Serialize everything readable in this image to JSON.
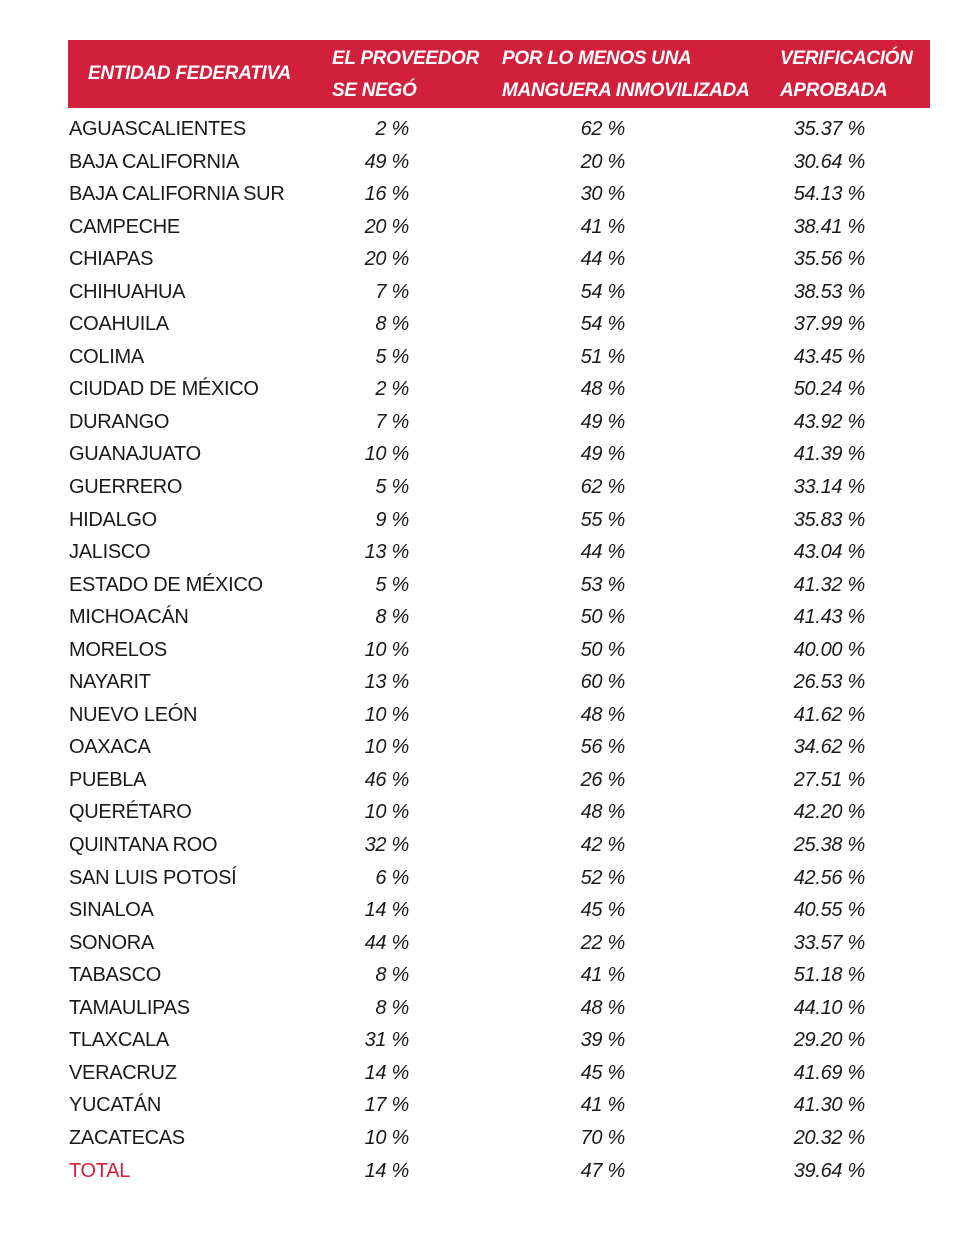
{
  "header": {
    "entidad": "ENTIDAD FEDERATIVA",
    "col1_line1": "EL PROVEEDOR",
    "col1_line2": "SE NEGÓ",
    "col2_line1": "POR LO MENOS UNA",
    "col2_line2": "MANGUERA INMOVILIZADA",
    "col3_line1": "VERIFICACIÓN",
    "col3_line2": "APROBADA"
  },
  "colors": {
    "header_bg": "#d21f3c",
    "total_label": "#d21f3c"
  },
  "rows": [
    {
      "name": "AGUASCALIENTES",
      "v1": "2 %",
      "v2": "62 %",
      "v3": "35.37 %"
    },
    {
      "name": "BAJA CALIFORNIA",
      "v1": "49 %",
      "v2": "20 %",
      "v3": "30.64 %"
    },
    {
      "name": "BAJA CALIFORNIA SUR",
      "v1": "16 %",
      "v2": "30 %",
      "v3": "54.13 %"
    },
    {
      "name": "CAMPECHE",
      "v1": "20 %",
      "v2": "41 %",
      "v3": "38.41 %"
    },
    {
      "name": "CHIAPAS",
      "v1": "20 %",
      "v2": "44 %",
      "v3": "35.56 %"
    },
    {
      "name": "CHIHUAHUA",
      "v1": "7 %",
      "v2": "54 %",
      "v3": "38.53 %"
    },
    {
      "name": "COAHUILA",
      "v1": "8 %",
      "v2": "54 %",
      "v3": "37.99 %"
    },
    {
      "name": "COLIMA",
      "v1": "5 %",
      "v2": "51 %",
      "v3": "43.45 %"
    },
    {
      "name": "CIUDAD DE MÉXICO",
      "v1": "2 %",
      "v2": "48 %",
      "v3": "50.24 %"
    },
    {
      "name": "DURANGO",
      "v1": "7 %",
      "v2": "49 %",
      "v3": "43.92 %"
    },
    {
      "name": "GUANAJUATO",
      "v1": "10 %",
      "v2": "49 %",
      "v3": "41.39 %"
    },
    {
      "name": "GUERRERO",
      "v1": "5 %",
      "v2": "62 %",
      "v3": "33.14 %"
    },
    {
      "name": "HIDALGO",
      "v1": "9 %",
      "v2": "55 %",
      "v3": "35.83 %"
    },
    {
      "name": "JALISCO",
      "v1": "13 %",
      "v2": "44 %",
      "v3": "43.04 %"
    },
    {
      "name": "ESTADO DE MÉXICO",
      "v1": "5 %",
      "v2": "53 %",
      "v3": "41.32 %"
    },
    {
      "name": "MICHOACÁN",
      "v1": "8 %",
      "v2": "50 %",
      "v3": "41.43 %"
    },
    {
      "name": "MORELOS",
      "v1": "10 %",
      "v2": "50 %",
      "v3": "40.00 %"
    },
    {
      "name": "NAYARIT",
      "v1": "13 %",
      "v2": "60 %",
      "v3": "26.53 %"
    },
    {
      "name": "NUEVO LEÓN",
      "v1": "10 %",
      "v2": "48 %",
      "v3": "41.62 %"
    },
    {
      "name": "OAXACA",
      "v1": "10 %",
      "v2": "56 %",
      "v3": "34.62 %"
    },
    {
      "name": "PUEBLA",
      "v1": "46 %",
      "v2": "26 %",
      "v3": "27.51 %"
    },
    {
      "name": "QUERÉTARO",
      "v1": "10 %",
      "v2": "48 %",
      "v3": "42.20 %"
    },
    {
      "name": "QUINTANA ROO",
      "v1": "32 %",
      "v2": "42 %",
      "v3": "25.38 %"
    },
    {
      "name": "SAN LUIS POTOSÍ",
      "v1": "6 %",
      "v2": "52 %",
      "v3": "42.56 %"
    },
    {
      "name": "SINALOA",
      "v1": "14 %",
      "v2": "45 %",
      "v3": "40.55 %"
    },
    {
      "name": "SONORA",
      "v1": "44 %",
      "v2": "22 %",
      "v3": "33.57 %"
    },
    {
      "name": "TABASCO",
      "v1": "8 %",
      "v2": "41 %",
      "v3": "51.18 %"
    },
    {
      "name": "TAMAULIPAS",
      "v1": "8 %",
      "v2": "48 %",
      "v3": "44.10 %"
    },
    {
      "name": "TLAXCALA",
      "v1": "31 %",
      "v2": "39 %",
      "v3": "29.20 %"
    },
    {
      "name": "VERACRUZ",
      "v1": "14 %",
      "v2": "45 %",
      "v3": "41.69 %"
    },
    {
      "name": "YUCATÁN",
      "v1": "17 %",
      "v2": "41 %",
      "v3": "41.30 %"
    },
    {
      "name": "ZACATECAS",
      "v1": "10 %",
      "v2": "70 %",
      "v3": "20.32 %"
    }
  ],
  "total": {
    "name": "TOTAL",
    "v1": "14 %",
    "v2": "47 %",
    "v3": "39.64 %"
  }
}
